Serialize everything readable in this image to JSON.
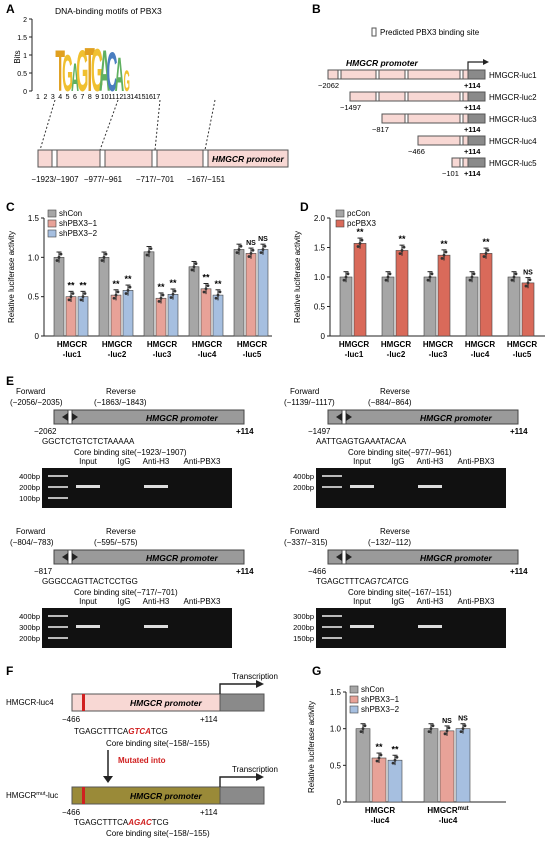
{
  "panel_labels": {
    "a": "A",
    "b": "B",
    "c": "C",
    "d": "D",
    "e": "E",
    "f": "F",
    "g": "G"
  },
  "panel_a": {
    "title": "DNA-binding motifs of PBX3",
    "ylabel": "Bits",
    "yticks": [
      "0",
      "0.5",
      "1",
      "1.5",
      "2"
    ],
    "positions": [
      "1",
      "2",
      "3",
      "4",
      "5",
      "6",
      "7",
      "8",
      "9",
      "10",
      "11",
      "12",
      "13",
      "14",
      "15",
      "16",
      "17"
    ],
    "motif_letters": [
      {
        "pos": 4,
        "letter": "T",
        "color": "#e0a020"
      },
      {
        "pos": 5,
        "letter": "G",
        "color": "#f0c030"
      },
      {
        "pos": 6,
        "letter": "A",
        "color": "#60b060"
      },
      {
        "pos": 7,
        "letter": "G",
        "color": "#f0c030"
      },
      {
        "pos": 8,
        "letter": "T",
        "color": "#e0a020"
      },
      {
        "pos": 9,
        "letter": "G",
        "color": "#f0c030"
      },
      {
        "pos": 10,
        "letter": "A",
        "color": "#60b060"
      },
      {
        "pos": 11,
        "letter": "C",
        "color": "#4a7ec0"
      },
      {
        "pos": 12,
        "letter": "A",
        "color": "#60b060"
      },
      {
        "pos": 13,
        "letter": "G",
        "color": "#f0c030"
      }
    ],
    "promoter_label": "HMGCR promoter",
    "sites": [
      "−1923/−1907",
      "−977/−961",
      "−717/−701",
      "−167/−151"
    ]
  },
  "panel_b": {
    "legend": "Predicted PBX3 binding site",
    "promoter_label": "HMGCR promoter",
    "constructs": [
      {
        "name": "HMGCR-luc1",
        "start": "−2062",
        "end": "+114"
      },
      {
        "name": "HMGCR-luc2",
        "start": "−1497",
        "end": "+114"
      },
      {
        "name": "HMGCR-luc3",
        "start": "−817",
        "end": "+114"
      },
      {
        "name": "HMGCR-luc4",
        "start": "−466",
        "end": "+114"
      },
      {
        "name": "HMGCR-luc5",
        "start": "−101",
        "end": "+114"
      }
    ]
  },
  "chart_data": [
    {
      "type": "bar",
      "panel": "C",
      "ylabel": "Relative luciferase activity",
      "ylim": [
        0,
        1.5
      ],
      "yticks": [
        "0",
        "0.5",
        "1.0",
        "1.5"
      ],
      "categories": [
        "HMGCR\n-luc1",
        "HMGCR\n-luc2",
        "HMGCR\n-luc3",
        "HMGCR\n-luc4",
        "HMGCR\n-luc5"
      ],
      "series": [
        {
          "name": "shCon",
          "color": "#a6a6a6",
          "values": [
            1.0,
            1.0,
            1.07,
            0.88,
            1.1
          ]
        },
        {
          "name": "shPBX3−1",
          "color": "#e8a298",
          "values": [
            0.5,
            0.52,
            0.48,
            0.6,
            1.05
          ]
        },
        {
          "name": "shPBX3−2",
          "color": "#a6bfe0",
          "values": [
            0.5,
            0.58,
            0.53,
            0.52,
            1.1
          ]
        }
      ],
      "significance": [
        [
          "",
          "**",
          "**"
        ],
        [
          "",
          "**",
          "**"
        ],
        [
          "",
          "**",
          "**"
        ],
        [
          "",
          "**",
          "**"
        ],
        [
          "",
          "NS",
          "NS"
        ]
      ],
      "legend": "top-left"
    },
    {
      "type": "bar",
      "panel": "D",
      "ylabel": "Relative luciferase activity",
      "ylim": [
        0,
        2.0
      ],
      "yticks": [
        "0",
        "0.5",
        "1.0",
        "1.5",
        "2.0"
      ],
      "categories": [
        "HMGCR\n-luc1",
        "HMGCR\n-luc2",
        "HMGCR\n-luc3",
        "HMGCR\n-luc4",
        "HMGCR\n-luc5"
      ],
      "series": [
        {
          "name": "pcCon",
          "color": "#a6a6a6",
          "values": [
            1.0,
            1.0,
            1.0,
            1.0,
            1.0
          ]
        },
        {
          "name": "pcPBX3",
          "color": "#d96a5a",
          "values": [
            1.57,
            1.45,
            1.37,
            1.4,
            0.9
          ]
        }
      ],
      "significance": [
        [
          "",
          "**"
        ],
        [
          "",
          "**"
        ],
        [
          "",
          "**"
        ],
        [
          "",
          "**"
        ],
        [
          "",
          "NS"
        ]
      ],
      "legend": "top-left"
    },
    {
      "type": "bar",
      "panel": "G",
      "ylabel": "Relative luciferase activity",
      "ylim": [
        0,
        1.5
      ],
      "yticks": [
        "0",
        "0.5",
        "1.0",
        "1.5"
      ],
      "categories": [
        "HMGCR\n-luc4",
        "HMGCR^mut\n-luc4"
      ],
      "series": [
        {
          "name": "shCon",
          "color": "#a6a6a6",
          "values": [
            1.0,
            1.0
          ]
        },
        {
          "name": "shPBX3−1",
          "color": "#e8a298",
          "values": [
            0.6,
            0.97
          ]
        },
        {
          "name": "shPBX3−2",
          "color": "#a6bfe0",
          "values": [
            0.57,
            1.0
          ]
        }
      ],
      "significance": [
        [
          "",
          "**",
          "**"
        ],
        [
          "",
          "NS",
          "NS"
        ]
      ],
      "legend": "top-left"
    }
  ],
  "panel_e": {
    "blocks": [
      {
        "fwd": "Forward",
        "fwd_pos": "(−2056/−2035)",
        "rev": "Reverse",
        "rev_pos": "(−1863/−1843)",
        "start": "−2062",
        "end": "+114",
        "seq": "GGCTCTGTCTCTAAAAA",
        "site": "Core binding site(−1923/−1907)",
        "promoter": "HMGCR promoter",
        "ladder": [
          "400bp",
          "200bp",
          "100bp"
        ],
        "lanes": [
          "Input",
          "IgG",
          "Anti-H3",
          "Anti-PBX3"
        ]
      },
      {
        "fwd": "Forward",
        "fwd_pos": "(−1139/−1117)",
        "rev": "Reverse",
        "rev_pos": "(−884/−864)",
        "start": "−1497",
        "end": "+114",
        "seq": "AATTGAGTGAAATACAA",
        "site": "Core binding site(−977/−961)",
        "promoter": "HMGCR promoter",
        "ladder": [
          "400bp",
          "200bp"
        ],
        "lanes": [
          "Input",
          "IgG",
          "Anti-H3",
          "Anti-PBX3"
        ]
      },
      {
        "fwd": "Forward",
        "fwd_pos": "(−804/−783)",
        "rev": "Reverse",
        "rev_pos": "(−595/−575)",
        "start": "−817",
        "end": "+114",
        "seq": "GGGCCAGTTACTCCTGG",
        "site": "Core binding site(−717/−701)",
        "promoter": "HMGCR promoter",
        "ladder": [
          "400bp",
          "300bp",
          "200bp"
        ],
        "lanes": [
          "Input",
          "IgG",
          "Anti-H3",
          "Anti-PBX3"
        ]
      },
      {
        "fwd": "Forward",
        "fwd_pos": "(−337/−315)",
        "rev": "Reverse",
        "rev_pos": "(−132/−112)",
        "start": "−466",
        "end": "+114",
        "seq_a": "TGAGCTTTCA",
        "seq_b": "GTCAT",
        "seq_c": "CG",
        "site": "Core binding site(−167/−151)",
        "promoter": "HMGCR promoter",
        "ladder": [
          "300bp",
          "200bp",
          "150bp"
        ],
        "lanes": [
          "Input",
          "IgG",
          "Anti-H3",
          "Anti-PBX3"
        ]
      }
    ]
  },
  "panel_f": {
    "wt_name": "HMGCR-luc4",
    "mut_name_a": "HMGCR",
    "mut_name_sup": "mut",
    "mut_name_b": "-luc",
    "promoter": "HMGCR promoter",
    "transcription": "Transcription",
    "start": "−466",
    "end": "+114",
    "wt_seq_a": "TGAGCTTTCA",
    "wt_seq_b": "GTCA",
    "wt_seq_c": "TCG",
    "mut_seq_a": "TGAGCTTTCA",
    "mut_seq_b": "AGAC",
    "mut_seq_c": "TCG",
    "site": "Core binding site(−158/−155)",
    "mutated_into": "Mutated into",
    "accent": "#d02020"
  }
}
